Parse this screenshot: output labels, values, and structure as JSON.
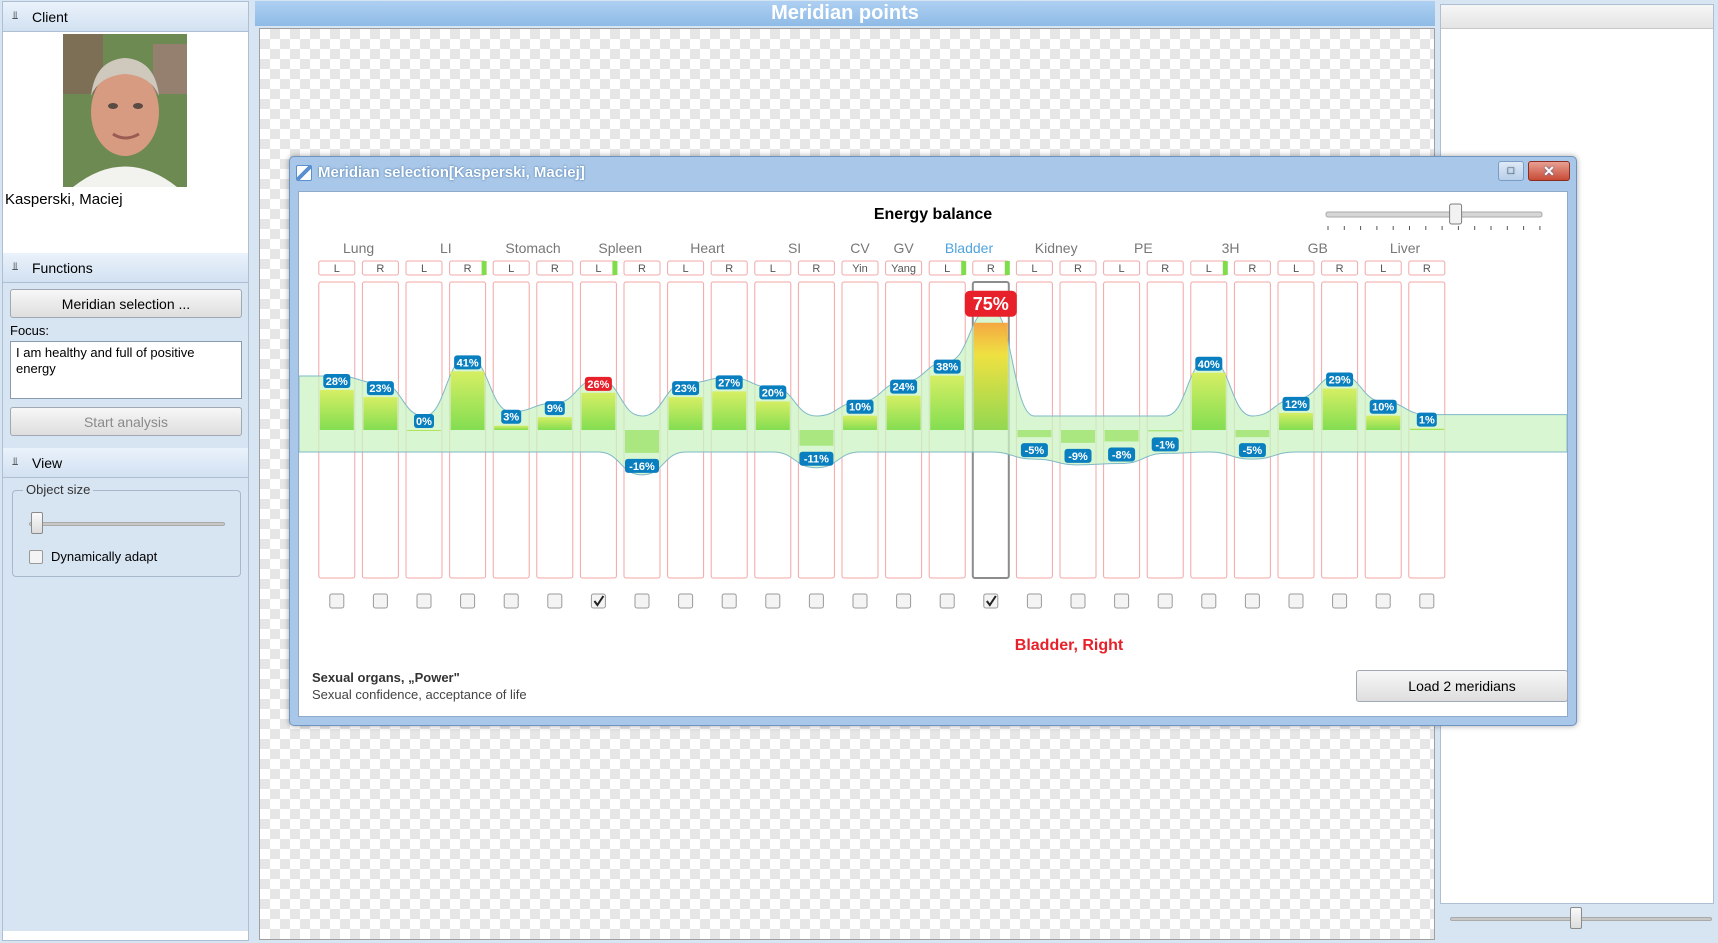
{
  "left_panel": {
    "client_header": "Client",
    "client_name": "Kasperski, Maciej",
    "functions_header": "Functions",
    "meridian_button": "Meridian selection ...",
    "focus_label": "Focus:",
    "focus_text": "I am healthy and full of positive energy",
    "start_button": "Start analysis",
    "view_header": "View",
    "object_size_label": "Object size",
    "object_size_value": 0,
    "dynamic_label": "Dynamically adapt",
    "dynamic_checked": false
  },
  "center": {
    "title": "Meridian points"
  },
  "dialog": {
    "title": "Meridian selection[Kasperski, Maciej]",
    "chart_title": "Energy balance",
    "balance_slider_value": 0.6,
    "selected_label": "Bladder, Right",
    "description_title": "Sexual organs, „Power\"",
    "description_text": "Sexual confidence, acceptance of life",
    "load_button": "Load 2 meridians"
  },
  "colors": {
    "positive": "#0a7fc0",
    "highlight": "#e8202a",
    "band": "#c9f3c1",
    "selected": "#4fa3dc"
  },
  "chart_data": {
    "type": "bar",
    "title": "Energy balance",
    "meridians": [
      {
        "name": "Lung",
        "sides": [
          "L",
          "R"
        ],
        "values": [
          28,
          23
        ],
        "checked": [
          false,
          false
        ]
      },
      {
        "name": "LI",
        "sides": [
          "L",
          "R"
        ],
        "values": [
          0,
          41
        ],
        "checked": [
          false,
          false
        ]
      },
      {
        "name": "Stomach",
        "sides": [
          "L",
          "R"
        ],
        "values": [
          3,
          9
        ],
        "checked": [
          false,
          false
        ]
      },
      {
        "name": "Spleen",
        "sides": [
          "L",
          "R"
        ],
        "values": [
          26,
          -16
        ],
        "checked": [
          true,
          false
        ],
        "highlight": [
          true,
          false
        ]
      },
      {
        "name": "Heart",
        "sides": [
          "L",
          "R"
        ],
        "values": [
          23,
          27
        ],
        "checked": [
          false,
          false
        ]
      },
      {
        "name": "SI",
        "sides": [
          "L",
          "R"
        ],
        "values": [
          20,
          -11
        ],
        "checked": [
          false,
          false
        ]
      },
      {
        "name": "CV",
        "sides": [
          "Yin"
        ],
        "values": [
          10
        ],
        "checked": [
          false
        ]
      },
      {
        "name": "GV",
        "sides": [
          "Yang"
        ],
        "values": [
          24
        ],
        "checked": [
          false
        ]
      },
      {
        "name": "Bladder",
        "sides": [
          "L",
          "R"
        ],
        "values": [
          38,
          75
        ],
        "checked": [
          false,
          true
        ],
        "highlight": [
          false,
          true
        ],
        "selected": true
      },
      {
        "name": "Kidney",
        "sides": [
          "L",
          "R"
        ],
        "values": [
          -5,
          -9
        ],
        "checked": [
          false,
          false
        ]
      },
      {
        "name": "PE",
        "sides": [
          "L",
          "R"
        ],
        "values": [
          -8,
          -1
        ],
        "checked": [
          false,
          false
        ]
      },
      {
        "name": "3H",
        "sides": [
          "L",
          "R"
        ],
        "values": [
          40,
          -5
        ],
        "checked": [
          false,
          false
        ]
      },
      {
        "name": "GB",
        "sides": [
          "L",
          "R"
        ],
        "values": [
          12,
          29
        ],
        "checked": [
          false,
          false
        ]
      },
      {
        "name": "Liver",
        "sides": [
          "L",
          "R"
        ],
        "values": [
          10,
          1
        ],
        "checked": [
          false,
          false
        ]
      }
    ],
    "value_suffix": "%"
  },
  "right_panel": {
    "slider_value": 0.5
  }
}
